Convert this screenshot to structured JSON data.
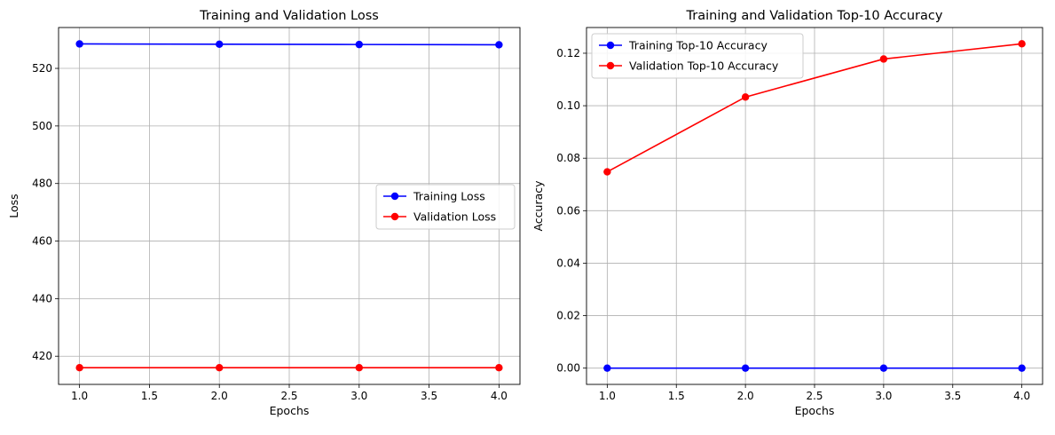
{
  "chart_data": [
    {
      "type": "line",
      "title": "Training and Validation Loss",
      "xlabel": "Epochs",
      "ylabel": "Loss",
      "xlim": [
        0.85,
        4.15
      ],
      "ylim": [
        410.2,
        534.2
      ],
      "xticks": [
        "1.0",
        "1.5",
        "2.0",
        "2.5",
        "3.0",
        "3.5",
        "4.0"
      ],
      "yticks": [
        "420",
        "440",
        "460",
        "480",
        "500",
        "520"
      ],
      "grid": true,
      "legend_position": "center-right",
      "x": [
        1,
        2,
        3,
        4
      ],
      "series": [
        {
          "name": "Training Loss",
          "color": "#0000ff",
          "marker": "circle",
          "values": [
            528.5,
            528.4,
            528.3,
            528.2
          ]
        },
        {
          "name": "Validation Loss",
          "color": "#ff0000",
          "marker": "circle",
          "values": [
            416.0,
            416.0,
            416.0,
            416.0
          ]
        }
      ]
    },
    {
      "type": "line",
      "title": "Training and Validation Top-10 Accuracy",
      "xlabel": "Epochs",
      "ylabel": "Accuracy",
      "xlim": [
        0.85,
        4.15
      ],
      "ylim": [
        -0.0062,
        0.1298
      ],
      "xticks": [
        "1.0",
        "1.5",
        "2.0",
        "2.5",
        "3.0",
        "3.5",
        "4.0"
      ],
      "yticks": [
        "0.00",
        "0.02",
        "0.04",
        "0.06",
        "0.08",
        "0.10",
        "0.12"
      ],
      "grid": true,
      "legend_position": "top-left",
      "x": [
        1,
        2,
        3,
        4
      ],
      "series": [
        {
          "name": "Training Top-10 Accuracy",
          "color": "#0000ff",
          "marker": "circle",
          "values": [
            0.0,
            0.0,
            0.0,
            0.0
          ]
        },
        {
          "name": "Validation Top-10 Accuracy",
          "color": "#ff0000",
          "marker": "circle",
          "values": [
            0.0748,
            0.1033,
            0.1178,
            0.1236
          ]
        }
      ]
    }
  ]
}
